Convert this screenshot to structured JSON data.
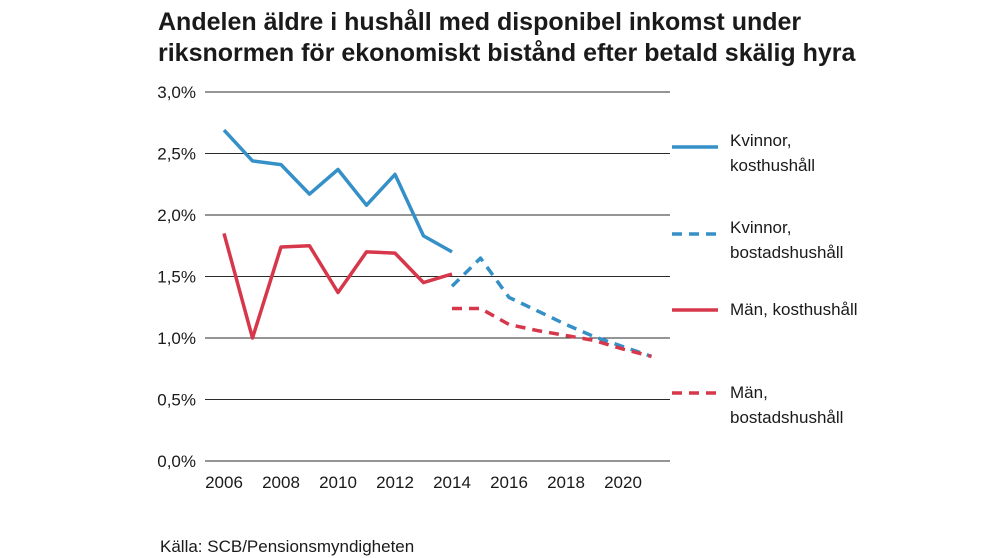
{
  "chart_data": {
    "type": "line",
    "title_lines": [
      "Andelen äldre i hushåll med disponibel inkomst under",
      "riksnormen för ekonomiskt bistånd efter betald skälig hyra"
    ],
    "xlabel": "",
    "ylabel": "",
    "x_ticks": [
      2006,
      2008,
      2010,
      2012,
      2014,
      2016,
      2018,
      2020
    ],
    "y_ticks": [
      0,
      0.5,
      1.0,
      1.5,
      2.0,
      2.5,
      3.0
    ],
    "y_tick_labels": [
      "0,0%",
      "0,5%",
      "1,0%",
      "1,5%",
      "2,0%",
      "2,5%",
      "3,0%"
    ],
    "ylim": [
      0,
      3.0
    ],
    "grid": true,
    "legend": "right",
    "series": [
      {
        "name": "Kvinnor, kosthushåll",
        "color": "#3590c8",
        "dashed": false,
        "x": [
          2006,
          2007,
          2008,
          2009,
          2010,
          2011,
          2012,
          2013,
          2014
        ],
        "y": [
          2.69,
          2.44,
          2.41,
          2.17,
          2.37,
          2.08,
          2.33,
          1.83,
          1.7
        ]
      },
      {
        "name": "Kvinnor, bostadshushåll",
        "color": "#3590c8",
        "dashed": true,
        "x": [
          2014,
          2015,
          2016,
          2017,
          2018,
          2019,
          2020,
          2021
        ],
        "y": [
          1.42,
          1.65,
          1.33,
          1.22,
          1.11,
          1.01,
          0.93,
          0.85
        ]
      },
      {
        "name": "Män, kosthushåll",
        "color": "#d7374a",
        "dashed": false,
        "x": [
          2006,
          2007,
          2008,
          2009,
          2010,
          2011,
          2012,
          2013,
          2014
        ],
        "y": [
          1.85,
          1.0,
          1.74,
          1.75,
          1.37,
          1.7,
          1.69,
          1.45,
          1.52
        ]
      },
      {
        "name": "Män, bostadshushåll",
        "color": "#d7374a",
        "dashed": true,
        "x": [
          2014,
          2015,
          2016,
          2017,
          2018,
          2019,
          2020,
          2021
        ],
        "y": [
          1.24,
          1.24,
          1.11,
          1.06,
          1.02,
          0.98,
          0.91,
          0.85
        ]
      }
    ],
    "source": "Källa: SCB/Pensionsmyndigheten"
  }
}
